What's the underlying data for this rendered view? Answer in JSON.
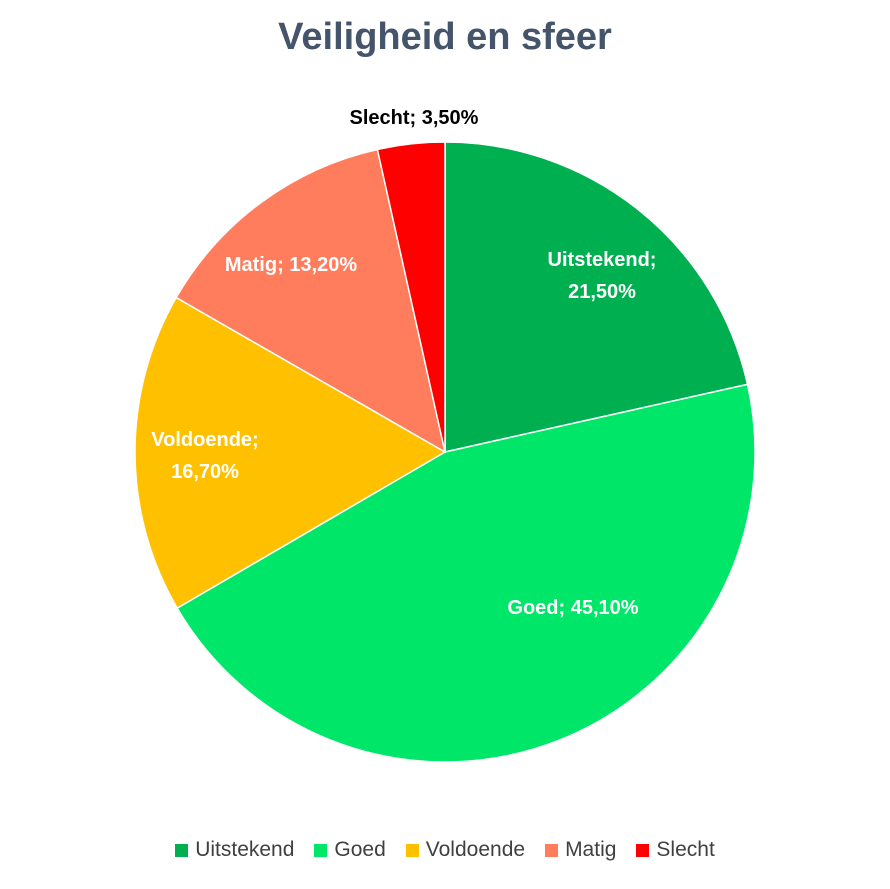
{
  "chart_data": {
    "type": "pie",
    "title": "Veiligheid en sfeer",
    "slices": [
      {
        "name": "Uitstekend",
        "value": 21.5,
        "label": "Uitstekend; 21,50%",
        "color": "#00b050",
        "label_color": "#ffffff"
      },
      {
        "name": "Goed",
        "value": 45.1,
        "label": "Goed; 45,10%",
        "color": "#00e668",
        "label_color": "#ffffff"
      },
      {
        "name": "Voldoende",
        "value": 16.7,
        "label": "Voldoende; 16,70%",
        "color": "#ffc000",
        "label_color": "#ffffff"
      },
      {
        "name": "Matig",
        "value": 13.2,
        "label": "Matig; 13,20%",
        "color": "#ff7c5c",
        "label_color": "#ffffff"
      },
      {
        "name": "Slecht",
        "value": 3.5,
        "label": "Slecht; 3,50%",
        "color": "#ff0000",
        "label_color": "#000000"
      }
    ],
    "legend": {
      "placement": "bottom",
      "entries": [
        "Uitstekend",
        "Goed",
        "Voldoende",
        "Matig",
        "Slecht"
      ]
    }
  }
}
